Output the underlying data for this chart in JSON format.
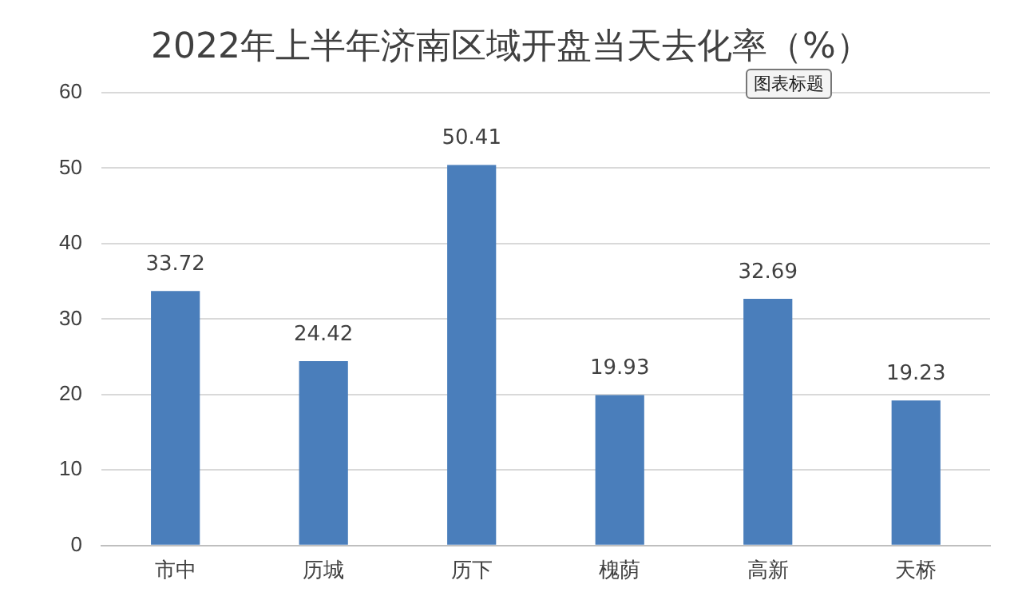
{
  "chart_data": {
    "type": "bar",
    "title": "2022年上半年济南区域开盘当天去化率（%）",
    "categories": [
      "市中",
      "历城",
      "历下",
      "槐荫",
      "高新",
      "天桥"
    ],
    "values": [
      33.72,
      24.42,
      50.41,
      19.93,
      32.69,
      19.23
    ],
    "color": "#4a7ebb",
    "ylim": [
      0,
      60
    ],
    "yticks": [
      0,
      10,
      20,
      30,
      40,
      50,
      60
    ],
    "grid": "y",
    "data_labels": true,
    "legend": false,
    "annotations": [
      "图表标题"
    ]
  }
}
